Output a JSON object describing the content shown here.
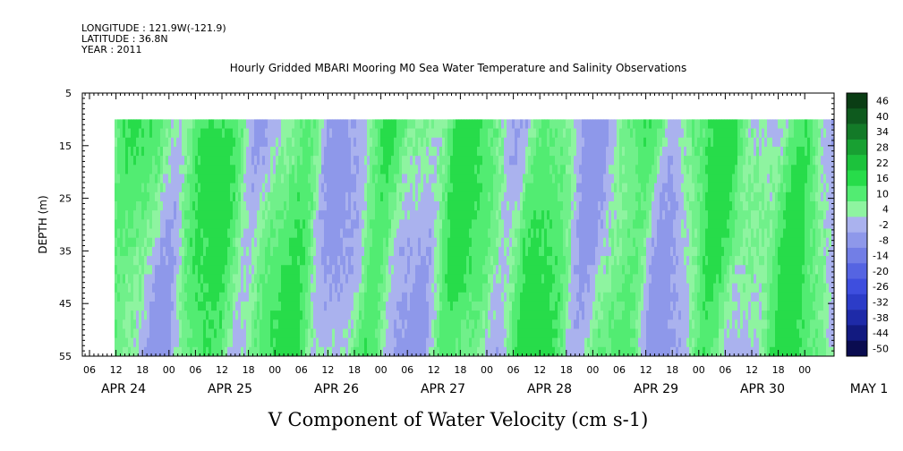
{
  "header": {
    "lines": [
      "LONGITUDE : 121.9W(-121.9)",
      "LATITUDE : 36.8N",
      "YEAR : 2011"
    ],
    "title": "Hourly Gridded MBARI Mooring M0 Sea Water Temperature and Salinity Observations"
  },
  "chart_data": {
    "type": "heatmap",
    "title": "V Component of Water Velocity (cm s-1)",
    "ylabel": "DEPTH (m)",
    "xlabel": "",
    "ylim": [
      55,
      5
    ],
    "y_ticks": [
      5,
      15,
      25,
      35,
      45,
      55
    ],
    "hour_ticks": [
      "06",
      "12",
      "18",
      "00",
      "06",
      "12",
      "18",
      "00",
      "06",
      "12",
      "18",
      "00",
      "06",
      "12",
      "18",
      "00",
      "06",
      "12",
      "18",
      "00",
      "06",
      "12",
      "18",
      "00",
      "06",
      "12",
      "18",
      "00"
    ],
    "date_labels": [
      "APR 24",
      "APR 25",
      "APR 26",
      "APR 27",
      "APR 28",
      "APR 29",
      "APR 30",
      "MAY 1"
    ],
    "data_depth_range": [
      10,
      55
    ],
    "colorbar": {
      "levels": [
        46,
        40,
        34,
        28,
        22,
        16,
        10,
        4,
        -2,
        -8,
        -14,
        -20,
        -26,
        -32,
        -38,
        -44,
        -50
      ],
      "colors": [
        "#0a3d14",
        "#0e5a1e",
        "#137a28",
        "#18a032",
        "#1cc23c",
        "#27dc4a",
        "#52ec72",
        "#8ef4a0",
        "#aab2ee",
        "#8e98ea",
        "#727ee6",
        "#5564e2",
        "#3e4ede",
        "#2c3cc8",
        "#1e2aa8",
        "#121a80",
        "#0a0c50"
      ]
    },
    "data_colors": [
      "#8ef4a0",
      "#70f08a",
      "#52ec72",
      "#27dc4a",
      "#aab2ee",
      "#8e98ea"
    ],
    "legend": "right"
  }
}
